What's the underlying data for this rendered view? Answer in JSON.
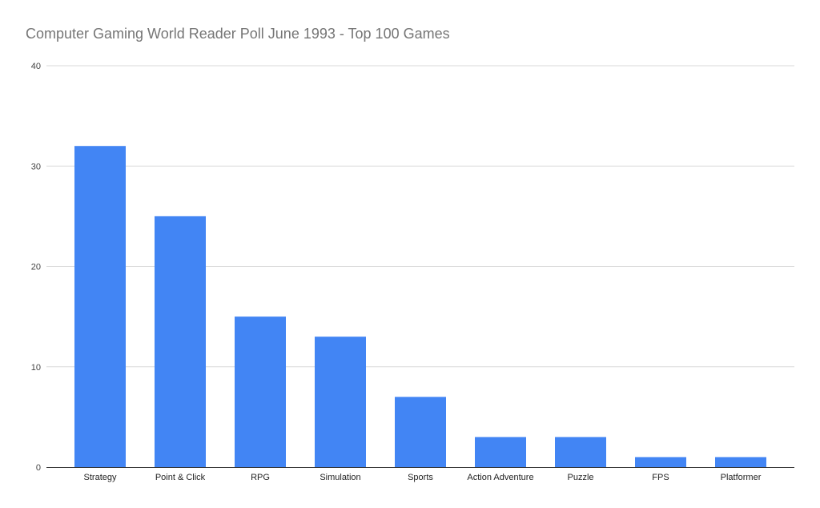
{
  "chart_data": {
    "type": "bar",
    "title": "Computer Gaming World Reader Poll June 1993 - Top 100 Games",
    "categories": [
      "Strategy",
      "Point & Click",
      "RPG",
      "Simulation",
      "Sports",
      "Action Adventure",
      "Puzzle",
      "FPS",
      "Platformer"
    ],
    "values": [
      32,
      25,
      15,
      13,
      7,
      3,
      3,
      1,
      1
    ],
    "xlabel": "",
    "ylabel": "",
    "ylim": [
      0,
      40
    ],
    "yticks": [
      "0",
      "10",
      "20",
      "30",
      "40"
    ],
    "grid": true,
    "legend": "none",
    "bar_color": "#4285f4"
  }
}
